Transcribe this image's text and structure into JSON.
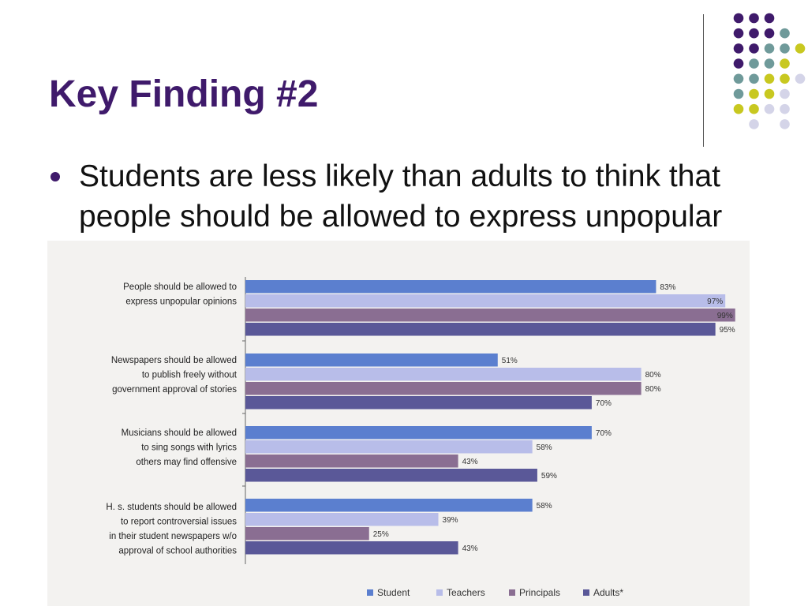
{
  "slide": {
    "title": "Key Finding #2",
    "bullet": "Students are less likely than adults to think that people should be allowed to express unpopular opinions."
  },
  "decor": {
    "dot_rows": [
      [
        "",
        "",
        "#3f1a6b",
        "#3f1a6b",
        "#3f1a6b",
        ""
      ],
      [
        "",
        "",
        "#3f1a6b",
        "#3f1a6b",
        "#3f1a6b",
        "#6f9a9a"
      ],
      [
        "",
        "",
        "#3f1a6b",
        "#3f1a6b",
        "#6f9a9a",
        "#6f9a9a",
        "#c8c820"
      ],
      [
        "",
        "",
        "#3f1a6b",
        "#6f9a9a",
        "#6f9a9a",
        "#c8c820"
      ],
      [
        "",
        "",
        "#6f9a9a",
        "#6f9a9a",
        "#c8c820",
        "#c8c820",
        "#d4d4e8"
      ],
      [
        "",
        "",
        "#6f9a9a",
        "#c8c820",
        "#c8c820",
        "#d4d4e8"
      ],
      [
        "",
        "",
        "#c8c820",
        "#c8c820",
        "#d4d4e8",
        "#d4d4e8"
      ],
      [
        "",
        "",
        "",
        "#d4d4e8",
        "",
        "#d4d4e8"
      ]
    ]
  },
  "chart_data": {
    "type": "bar",
    "orientation": "horizontal",
    "categories": [
      [
        "People should be allowed to",
        "express unpopular opinions"
      ],
      [
        "Newspapers should be allowed",
        "to publish freely without",
        "government approval of stories"
      ],
      [
        "Musicians should be allowed",
        "to sing songs with lyrics",
        "others may find offensive"
      ],
      [
        "H. s. students should be allowed",
        "to report controversial issues",
        "in their student newspapers w/o",
        "approval of school authorities"
      ]
    ],
    "series": [
      {
        "name": "Student",
        "color": "#5b7fcf",
        "values": [
          83,
          51,
          70,
          58
        ],
        "labels": [
          "83%",
          "51%",
          "70%",
          "58%"
        ]
      },
      {
        "name": "Teachers",
        "color": "#b8bde9",
        "values": [
          97,
          80,
          58,
          39
        ],
        "labels": [
          "97%",
          "80%",
          "58%",
          "39%"
        ]
      },
      {
        "name": "Principals",
        "color": "#8a6e92",
        "values": [
          99,
          80,
          43,
          25
        ],
        "labels": [
          "99%",
          "80%",
          "43%",
          "25%"
        ]
      },
      {
        "name": "Adults*",
        "color": "#5a5898",
        "values": [
          95,
          70,
          59,
          43
        ],
        "labels": [
          "95%",
          "70%",
          "59%",
          "43%"
        ]
      }
    ],
    "xlim": [
      0,
      100
    ],
    "legend": "bottom"
  }
}
